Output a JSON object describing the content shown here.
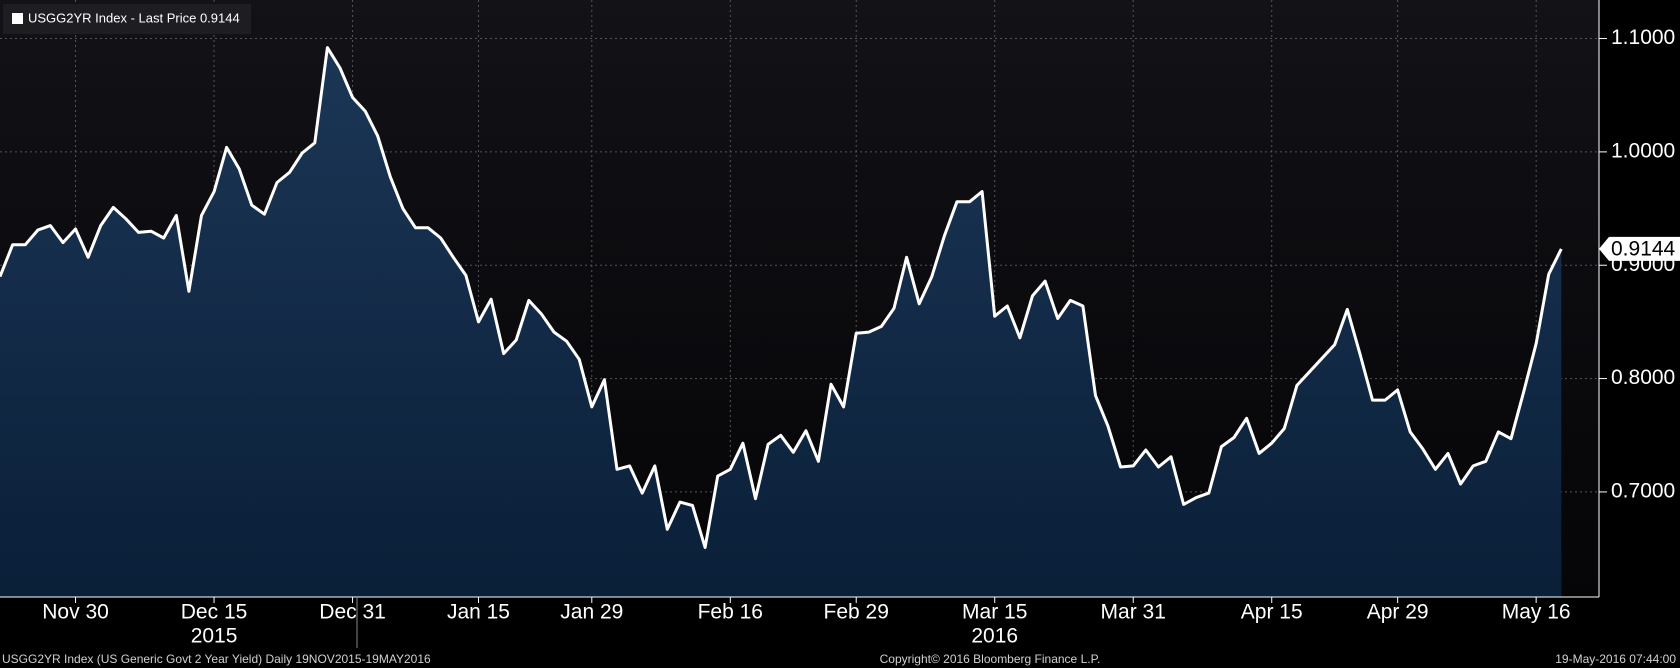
{
  "chart_data": {
    "type": "area",
    "series_name": "USGG2YR Index - Last Price 0.9144",
    "footer_left": "USGG2YR Index (US Generic Govt 2 Year Yield)  Daily 19NOV2015-19MAY2016",
    "footer_center": "Copyright© 2016 Bloomberg Finance L.P.",
    "footer_right": "19-May-2016 07:44:00",
    "color": "#ffffff",
    "values": [
      0.89,
      0.918,
      0.918,
      0.931,
      0.935,
      0.92,
      0.932,
      0.907,
      0.935,
      0.951,
      0.941,
      0.929,
      0.93,
      0.924,
      0.944,
      0.877,
      0.944,
      0.965,
      1.004,
      0.985,
      0.953,
      0.945,
      0.973,
      0.982,
      0.999,
      1.008,
      1.092,
      1.074,
      1.048,
      1.036,
      1.014,
      0.978,
      0.95,
      0.933,
      0.933,
      0.924,
      0.907,
      0.891,
      0.85,
      0.87,
      0.822,
      0.834,
      0.869,
      0.857,
      0.841,
      0.833,
      0.817,
      0.775,
      0.799,
      0.72,
      0.723,
      0.699,
      0.723,
      0.667,
      0.691,
      0.688,
      0.651,
      0.714,
      0.72,
      0.743,
      0.694,
      0.742,
      0.75,
      0.735,
      0.754,
      0.727,
      0.795,
      0.775,
      0.84,
      0.841,
      0.846,
      0.862,
      0.907,
      0.866,
      0.89,
      0.926,
      0.956,
      0.956,
      0.965,
      0.855,
      0.864,
      0.836,
      0.873,
      0.886,
      0.853,
      0.869,
      0.864,
      0.785,
      0.758,
      0.722,
      0.723,
      0.737,
      0.722,
      0.731,
      0.689,
      0.695,
      0.699,
      0.74,
      0.748,
      0.765,
      0.734,
      0.743,
      0.756,
      0.794,
      0.806,
      0.818,
      0.83,
      0.861,
      0.822,
      0.781,
      0.781,
      0.79,
      0.753,
      0.738,
      0.72,
      0.734,
      0.707,
      0.723,
      0.727,
      0.753,
      0.747,
      0.788,
      0.831,
      0.892,
      0.9144
    ],
    "ylim": [
      0.6073,
      1.134
    ],
    "yticks": [
      {
        "value": 0.7,
        "label": "0.7000"
      },
      {
        "value": 0.8,
        "label": "0.8000"
      },
      {
        "value": 0.9,
        "label": "0.9000"
      },
      {
        "value": 1.0,
        "label": "1.0000"
      },
      {
        "value": 1.1,
        "label": "1.1000"
      }
    ],
    "xticks": [
      {
        "value": 6,
        "label": "Nov 30"
      },
      {
        "value": 17,
        "label": "Dec 15"
      },
      {
        "value": 28,
        "label": "Dec 31"
      },
      {
        "value": 38,
        "label": "Jan 15"
      },
      {
        "value": 47,
        "label": "Jan 29"
      },
      {
        "value": 58,
        "label": "Feb 16"
      },
      {
        "value": 68,
        "label": "Feb 29"
      },
      {
        "value": 79,
        "label": "Mar 15"
      },
      {
        "value": 90,
        "label": "Mar 31"
      },
      {
        "value": 101,
        "label": "Apr 15"
      },
      {
        "value": 111,
        "label": "Apr 29"
      },
      {
        "value": 122,
        "label": "May 16"
      }
    ],
    "year_labels": [
      {
        "value": 17,
        "label": "2015"
      },
      {
        "value": 79,
        "label": "2016"
      }
    ],
    "grid": true
  }
}
